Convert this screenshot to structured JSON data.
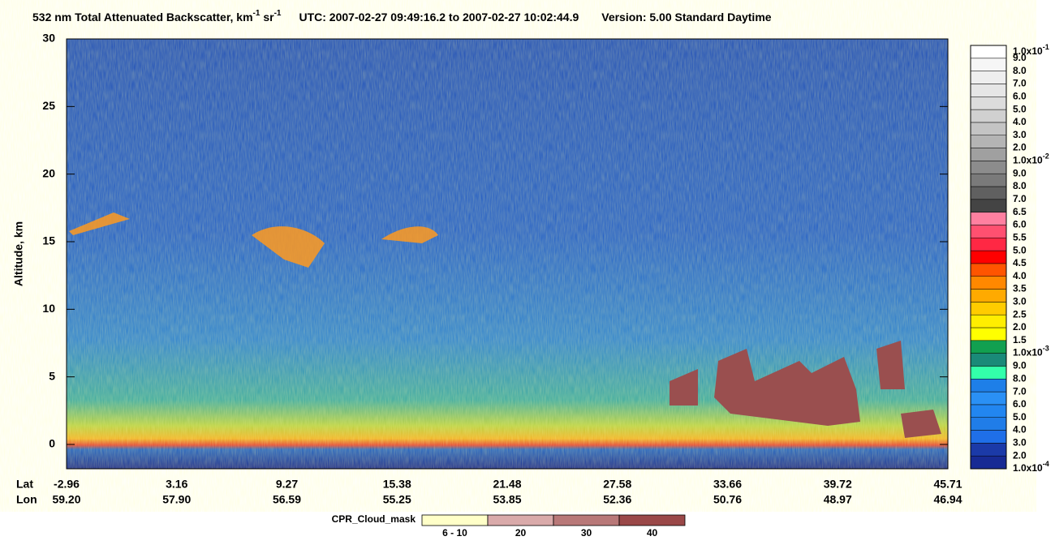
{
  "chart_data": {
    "type": "heatmap",
    "title": {
      "parts": [
        "532 nm Total Attenuated Backscatter, km",
        "-1",
        " sr",
        "-1",
        "UTC:  2007-02-27 09:49:16.2  to  2007-02-27 10:02:44.9",
        "Version: 5.00  Standard  Daytime"
      ]
    },
    "y_label": "Altitude, km",
    "ylim": [
      -1.8,
      30
    ],
    "yticks": [
      0,
      5,
      10,
      15,
      20,
      25,
      30
    ],
    "x_rows": [
      {
        "name": "Lat",
        "labels": [
          "-2.96",
          "3.16",
          "9.27",
          "15.38",
          "21.48",
          "27.58",
          "33.66",
          "39.72",
          "45.71"
        ]
      },
      {
        "name": "Lon",
        "labels": [
          "59.20",
          "57.90",
          "56.59",
          "55.25",
          "53.85",
          "52.36",
          "50.76",
          "48.97",
          "46.94"
        ]
      }
    ],
    "colorbar": {
      "labels": [
        {
          "text": "1.0x10",
          "sup": "-4"
        },
        "2.0",
        "3.0",
        "4.0",
        "5.0",
        "6.0",
        "7.0",
        "8.0",
        "9.0",
        {
          "text": "1.0x10",
          "sup": "-3"
        },
        "1.5",
        "2.0",
        "2.5",
        "3.0",
        "3.5",
        "4.0",
        "4.5",
        "5.0",
        "5.5",
        "6.0",
        "6.5",
        "7.0",
        "8.0",
        "9.0",
        {
          "text": "1.0x10",
          "sup": "-2"
        },
        "2.0",
        "3.0",
        "4.0",
        "5.0",
        "6.0",
        "7.0",
        "8.0",
        "9.0",
        {
          "text": "1.0x10",
          "sup": "-1"
        }
      ],
      "colors": [
        "#172a94",
        "#1b3aa8",
        "#1f6fe8",
        "#207de8",
        "#2286f0",
        "#2a90f5",
        "#1e7fe8",
        "#33ffaa",
        "#1a8a78",
        "#12a050",
        "#ffff00",
        "#ffee00",
        "#ffcc00",
        "#ffaa00",
        "#ff8800",
        "#ff5500",
        "#ff0000",
        "#ff2844",
        "#ff5070",
        "#ff80a0",
        "#444444",
        "#606060",
        "#7a7a7a",
        "#8c8c8c",
        "#a0a0a0",
        "#b4b4b4",
        "#c4c4c4",
        "#d0d0d0",
        "#dcdcdc",
        "#e6e6e6",
        "#eeeeee",
        "#f6f6f6",
        "#ffffff"
      ]
    },
    "cloud_mask": {
      "name": "CPR_Cloud_mask",
      "labels": [
        "6 - 10",
        "20",
        "30",
        "40"
      ],
      "colors": [
        "#ffffc8",
        "#d9aaaa",
        "#b87878",
        "#9a4848"
      ]
    }
  }
}
